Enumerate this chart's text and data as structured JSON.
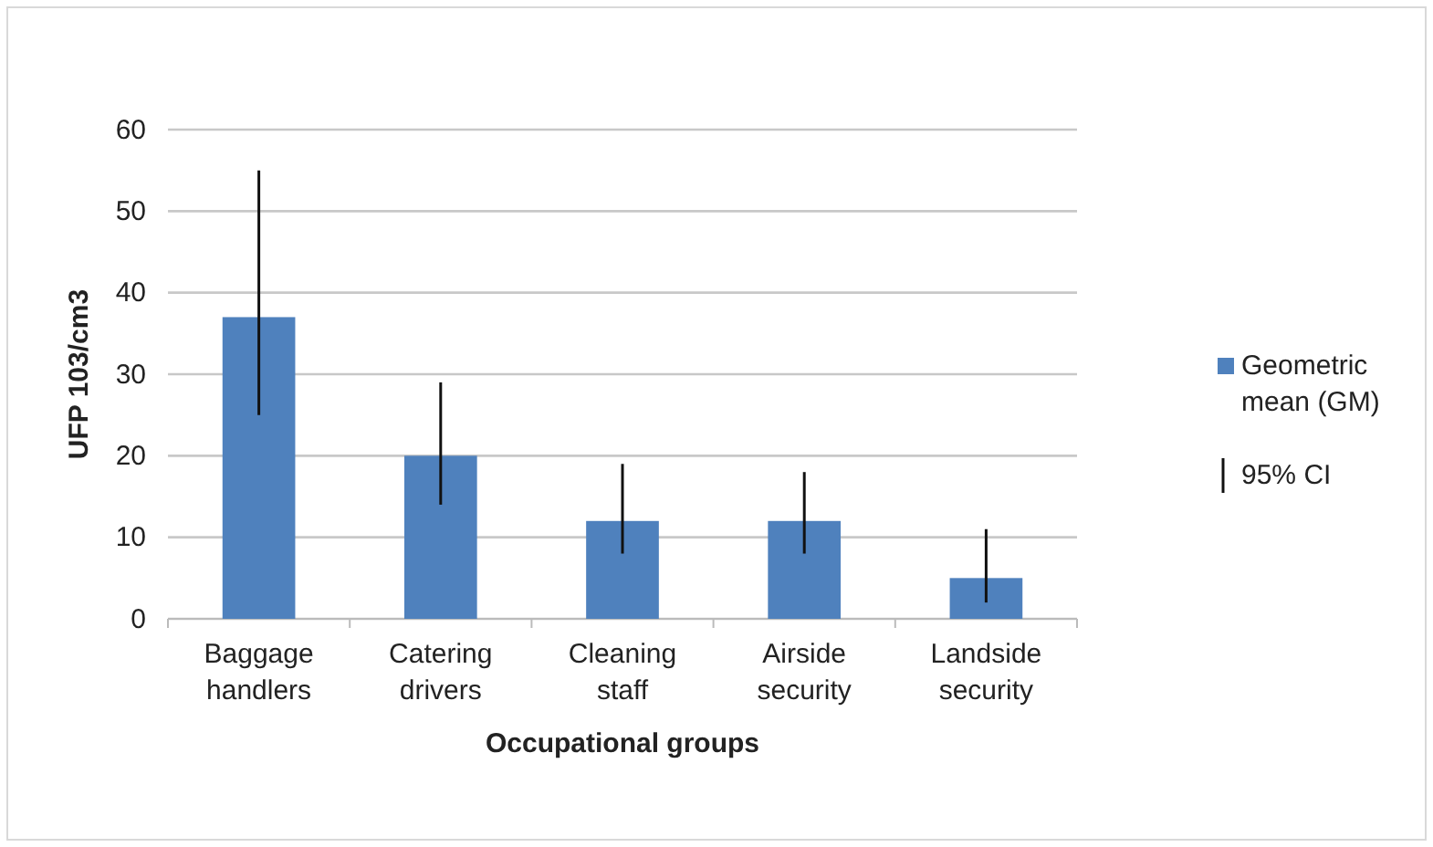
{
  "chart_data": {
    "type": "bar",
    "xlabel": "Occupational groups",
    "ylabel": "UFP 103/cm3",
    "categories": [
      "Baggage handlers",
      "Catering drivers",
      "Cleaning staff",
      "Airside security",
      "Landside security"
    ],
    "series": [
      {
        "name": "Geometric mean (GM)",
        "color": "#4f81bd",
        "values": [
          37,
          20,
          12,
          12,
          5
        ],
        "errors": [
          [
            25,
            55
          ],
          [
            14,
            29
          ],
          [
            8,
            19
          ],
          [
            8,
            18
          ],
          [
            2,
            11
          ]
        ]
      }
    ],
    "annotations": [
      "95% CI"
    ],
    "ylim": [
      0,
      60
    ],
    "yticks": [
      0,
      10,
      20,
      30,
      40,
      50,
      60
    ],
    "grid": "y",
    "legend": "right"
  }
}
